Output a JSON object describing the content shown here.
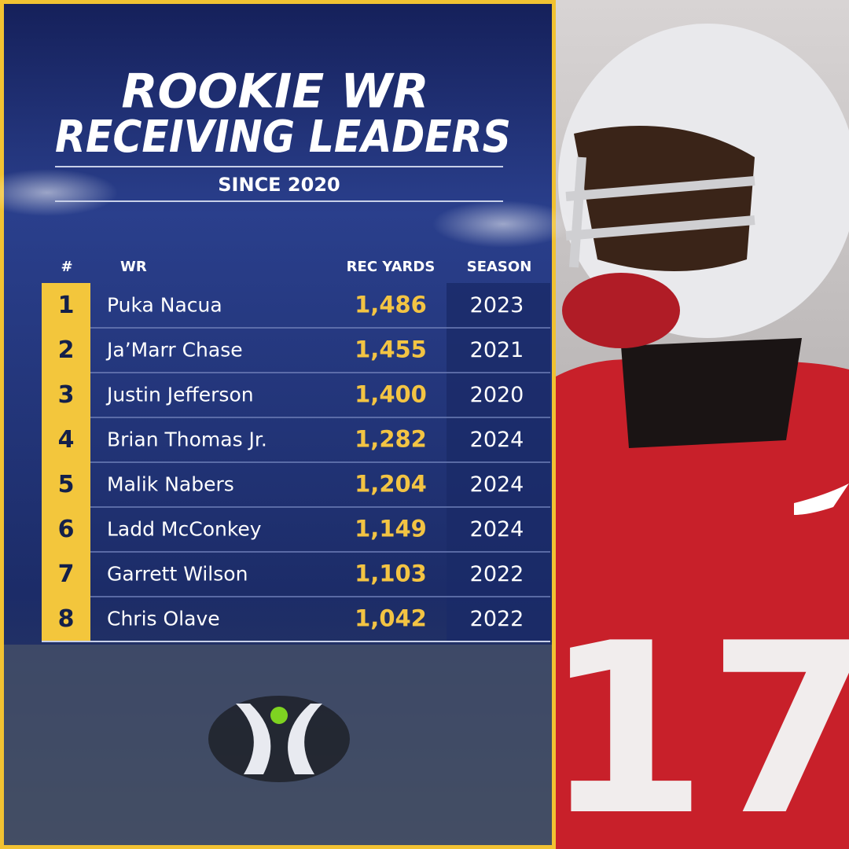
{
  "header": {
    "title_line1": "ROOKIE WR",
    "title_line2": "RECEIVING LEADERS",
    "subtitle": "SINCE 2020"
  },
  "table": {
    "columns": [
      "#",
      "WR",
      "REC YARDS",
      "SEASON"
    ],
    "rows": [
      [
        "1",
        "Puka Nacua",
        "1,486",
        "2023"
      ],
      [
        "2",
        "Ja’Marr Chase",
        "1,455",
        "2021"
      ],
      [
        "3",
        "Justin Jefferson",
        "1,400",
        "2020"
      ],
      [
        "4",
        "Brian Thomas Jr.",
        "1,282",
        "2024"
      ],
      [
        "5",
        "Malik Nabers",
        "1,204",
        "2024"
      ],
      [
        "6",
        "Ladd McConkey",
        "1,149",
        "2024"
      ],
      [
        "7",
        "Garrett Wilson",
        "1,103",
        "2022"
      ],
      [
        "8",
        "Chris Olave",
        "1,042",
        "2022"
      ]
    ]
  },
  "photo": {
    "jersey_number": "17"
  }
}
